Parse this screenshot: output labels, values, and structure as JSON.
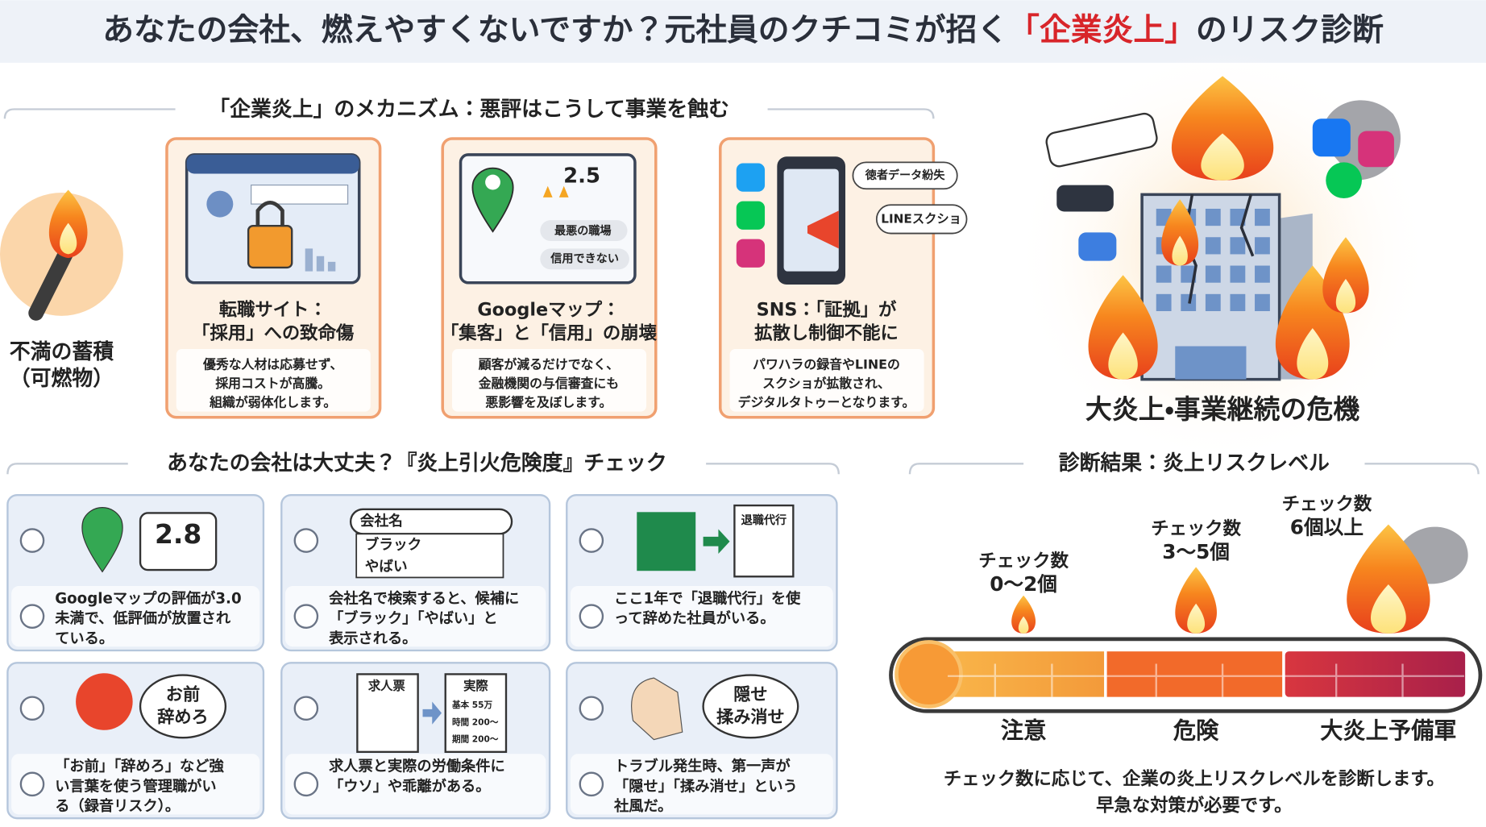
{
  "header": {
    "title_before": "あなたの会社、燃えやすくないですか？元社員のクチコミが招く",
    "title_highlight": "「企業炎上」",
    "title_after": "のリスク診断"
  },
  "mechanism": {
    "heading": "「企業炎上」のメカニズム：悪評はこうして事業を蝕む",
    "fuel": [
      "不満の蓄積",
      "（可燃物）"
    ],
    "cards": [
      {
        "icon_texts": [],
        "title": [
          "転職サイト：",
          "「採用」への致命傷"
        ],
        "body": [
          "優秀な人材は応募せず、",
          "採用コストが高騰。",
          "組織が弱体化します。"
        ]
      },
      {
        "icon_texts": [
          "2.5",
          "最悪の職場",
          "信用できない"
        ],
        "title": [
          "Googleマップ：",
          "「集客」と「信用」の崩壊"
        ],
        "body": [
          "顧客が減るだけでなく、",
          "金融機関の与信審査にも",
          "悪影響を及ぼします。"
        ]
      },
      {
        "icon_texts": [
          "徳者データ紛失",
          "LINEスクショ"
        ],
        "title": [
          "SNS：「証拠」が",
          "拡散し制御不能に"
        ],
        "body": [
          "パワハラの録音やLINEの",
          "スクショが拡散され、",
          "デジタルタトゥーとなります。"
        ]
      }
    ],
    "outcome": "大炎上・事業継続の危機"
  },
  "checklist": {
    "heading": "あなたの会社は大丈夫？『炎上引火危険度』チェック",
    "items": [
      {
        "icon_texts": [
          "2.8"
        ],
        "text": [
          "Googleマップの評価が3.0",
          "未満で、低評価が放置され",
          "ている。"
        ]
      },
      {
        "icon_texts": [
          "会社名",
          "ブラック",
          "やばい"
        ],
        "text": [
          "会社名で検索すると、候補に",
          "「ブラック」「やばい」と",
          "表示される。"
        ]
      },
      {
        "icon_texts": [
          "退職代行"
        ],
        "text": [
          "ここ1年で「退職代行」を使",
          "って辞めた社員がいる。"
        ]
      },
      {
        "icon_texts": [
          "お前",
          "辞めろ"
        ],
        "text": [
          "「お前」「辞めろ」など強",
          "い言葉を使う管理職がい",
          "る（録音リスク）。"
        ]
      },
      {
        "icon_texts": [
          "求人票",
          "実際",
          "基本 55万",
          "時間 200〜",
          "期間 200〜"
        ],
        "text": [
          "求人票と実際の労働条件に",
          "「ウソ」や乖離がある。"
        ]
      },
      {
        "icon_texts": [
          "隠せ",
          "揉み消せ"
        ],
        "text": [
          "トラブル発生時、第一声が",
          "「隠せ」「揉み消せ」という",
          "社風だ。"
        ]
      }
    ]
  },
  "diagnosis": {
    "heading": "診断結果：炎上リスクレベル",
    "levels": [
      {
        "count": [
          "チェック数",
          "0〜2個"
        ],
        "label": "注意"
      },
      {
        "count": [
          "チェック数",
          "3〜5個"
        ],
        "label": "危険"
      },
      {
        "count": [
          "チェック数",
          "6個以上"
        ],
        "label": "大炎上予備軍"
      }
    ],
    "note": [
      "チェック数に応じて、企業の炎上リスクレベルを診断します。",
      "早急な対策が必要です。"
    ]
  }
}
